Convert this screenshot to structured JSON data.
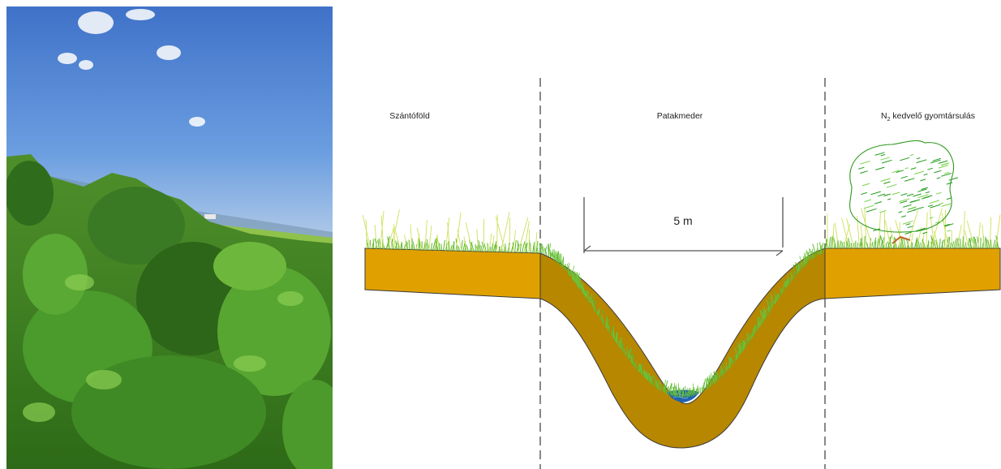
{
  "diagram": {
    "zones": {
      "left": "Szántóföld",
      "center": "Patakmeder",
      "right_prefix": "N",
      "right_subscript": "2",
      "right_suffix": " kedvelő gyomtársulás"
    },
    "width_label": "5 m"
  },
  "colors": {
    "field_soil": "#e0a100",
    "channel_soil": "#b78700",
    "grass_green": "#5cb82e",
    "weed_yellow": "#cfe05a",
    "water": "#1f63b0",
    "sky": "#5b8fd6"
  }
}
